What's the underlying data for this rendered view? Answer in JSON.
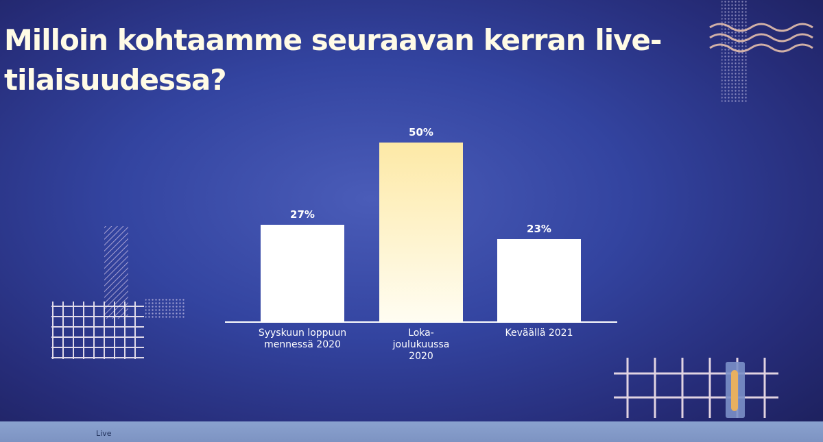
{
  "chart_data": {
    "type": "bar",
    "title": "Milloin kohtaamme seuraavan kerran live-tilaisuudessa?",
    "categories": [
      "Syyskuun loppuun mennessä 2020",
      "Loka-joulukuussa 2020",
      "Keväällä 2021"
    ],
    "values": [
      27,
      50,
      23
    ],
    "value_labels": [
      "27%",
      "50%",
      "23%"
    ],
    "color": "#ffffff",
    "highlight_color": "#fde9a6",
    "highlight_index": 1
  },
  "player": {
    "status": "Live"
  }
}
